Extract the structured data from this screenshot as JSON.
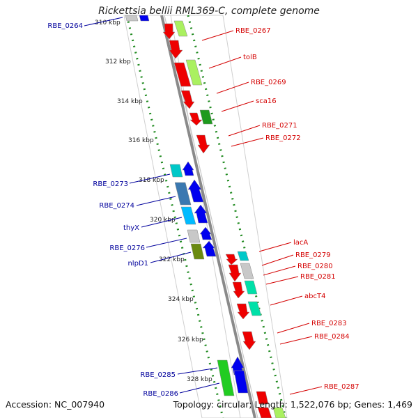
{
  "title": "Rickettsia bellii RML369-C, complete genome",
  "footer": {
    "accession": "Accession: NC_007940",
    "summary": "Topology: circular; Length: 1,522,076 bp; Genes: 1,469"
  },
  "colors": {
    "backbone": "#8a8a8a",
    "scale_dots": "#1f8a1f",
    "forward_label": "#d40000",
    "reverse_label": "#00009c"
  },
  "scale_ticks": [
    "310 kbp",
    "312 kbp",
    "314 kbp",
    "316 kbp",
    "318 kbp",
    "320 kbp",
    "322 kbp",
    "324 kbp",
    "326 kbp",
    "328 kbp"
  ],
  "right_labels": [
    "RBE_0267",
    "tolB",
    "RBE_0269",
    "sca16",
    "RBE_0271",
    "RBE_0272",
    "lacA",
    "RBE_0279",
    "RBE_0280",
    "RBE_0281",
    "abcT4",
    "RBE_0283",
    "RBE_0284",
    "RBE_0287"
  ],
  "left_labels": [
    "RBE_0264",
    "RBE_0273",
    "RBE_0274",
    "thyX",
    "RBE_0276",
    "nlpD1",
    "RBE_0285",
    "RBE_0286"
  ]
}
